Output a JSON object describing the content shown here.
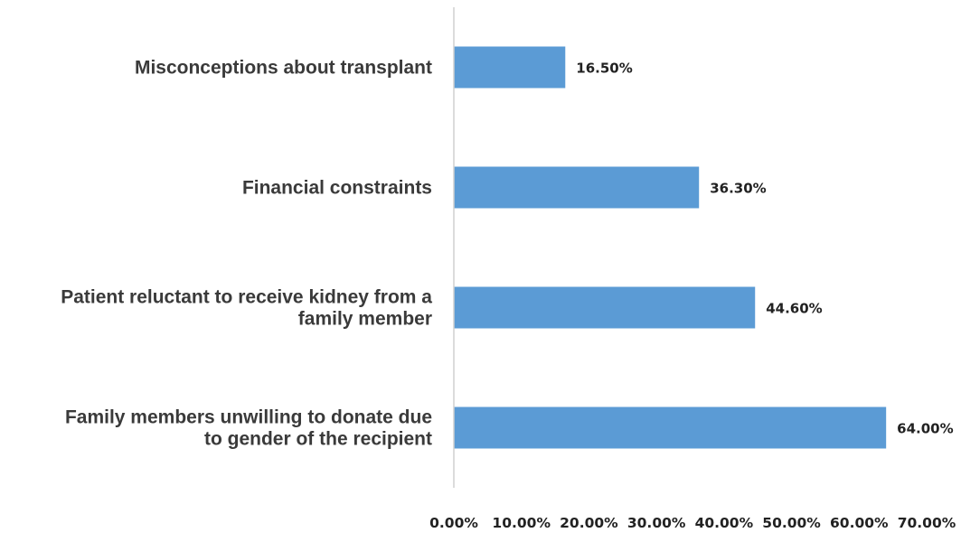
{
  "chart_data": {
    "type": "bar",
    "orientation": "horizontal",
    "categories": [
      [
        "Misconceptions about transplant"
      ],
      [
        "Financial constraints"
      ],
      [
        "Patient reluctant to receive kidney from a",
        "family member"
      ],
      [
        "Family members unwilling to donate due",
        "to gender of the recipient"
      ]
    ],
    "values": [
      16.5,
      36.3,
      44.6,
      64.0
    ],
    "data_labels": [
      "16.50%",
      "36.30%",
      "44.60%",
      "64.00%"
    ],
    "xlim": [
      0,
      70
    ],
    "x_ticks": [
      "0.00%",
      "10.00%",
      "20.00%",
      "30.00%",
      "40.00%",
      "50.00%",
      "60.00%",
      "70.00%"
    ],
    "grid": false,
    "legend": "none",
    "bar_color": "#5b9bd5",
    "axis_color": "#d0d0d0"
  }
}
